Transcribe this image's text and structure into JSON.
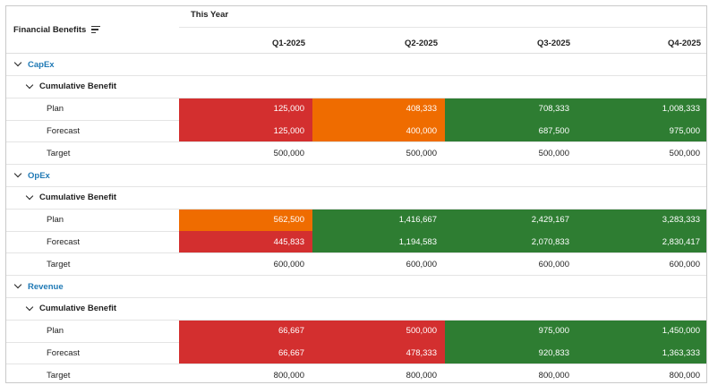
{
  "header": {
    "corner_label": "Financial Benefits",
    "period_label": "This Year",
    "quarters": [
      "Q1-2025",
      "Q2-2025",
      "Q3-2025",
      "Q4-2025"
    ]
  },
  "colors": {
    "red": "#d32f2f",
    "orange": "#ef6c00",
    "green": "#2e7d32",
    "group_link": "#1f79b5"
  },
  "groups": [
    {
      "name": "CapEx",
      "subgroup": "Cumulative Benefit",
      "rows": [
        {
          "label": "Plan",
          "values": [
            "125,000",
            "408,333",
            "708,333",
            "1,008,333"
          ],
          "status": [
            "red",
            "orange",
            "green",
            "green"
          ]
        },
        {
          "label": "Forecast",
          "values": [
            "125,000",
            "400,000",
            "687,500",
            "975,000"
          ],
          "status": [
            "red",
            "orange",
            "green",
            "green"
          ]
        },
        {
          "label": "Target",
          "values": [
            "500,000",
            "500,000",
            "500,000",
            "500,000"
          ],
          "status": [
            "none",
            "none",
            "none",
            "none"
          ]
        }
      ]
    },
    {
      "name": "OpEx",
      "subgroup": "Cumulative Benefit",
      "rows": [
        {
          "label": "Plan",
          "values": [
            "562,500",
            "1,416,667",
            "2,429,167",
            "3,283,333"
          ],
          "status": [
            "orange",
            "green",
            "green",
            "green"
          ]
        },
        {
          "label": "Forecast",
          "values": [
            "445,833",
            "1,194,583",
            "2,070,833",
            "2,830,417"
          ],
          "status": [
            "red",
            "green",
            "green",
            "green"
          ]
        },
        {
          "label": "Target",
          "values": [
            "600,000",
            "600,000",
            "600,000",
            "600,000"
          ],
          "status": [
            "none",
            "none",
            "none",
            "none"
          ]
        }
      ]
    },
    {
      "name": "Revenue",
      "subgroup": "Cumulative Benefit",
      "rows": [
        {
          "label": "Plan",
          "values": [
            "66,667",
            "500,000",
            "975,000",
            "1,450,000"
          ],
          "status": [
            "red",
            "red",
            "green",
            "green"
          ]
        },
        {
          "label": "Forecast",
          "values": [
            "66,667",
            "478,333",
            "920,833",
            "1,363,333"
          ],
          "status": [
            "red",
            "red",
            "green",
            "green"
          ]
        },
        {
          "label": "Target",
          "values": [
            "800,000",
            "800,000",
            "800,000",
            "800,000"
          ],
          "status": [
            "none",
            "none",
            "none",
            "none"
          ]
        }
      ]
    }
  ]
}
